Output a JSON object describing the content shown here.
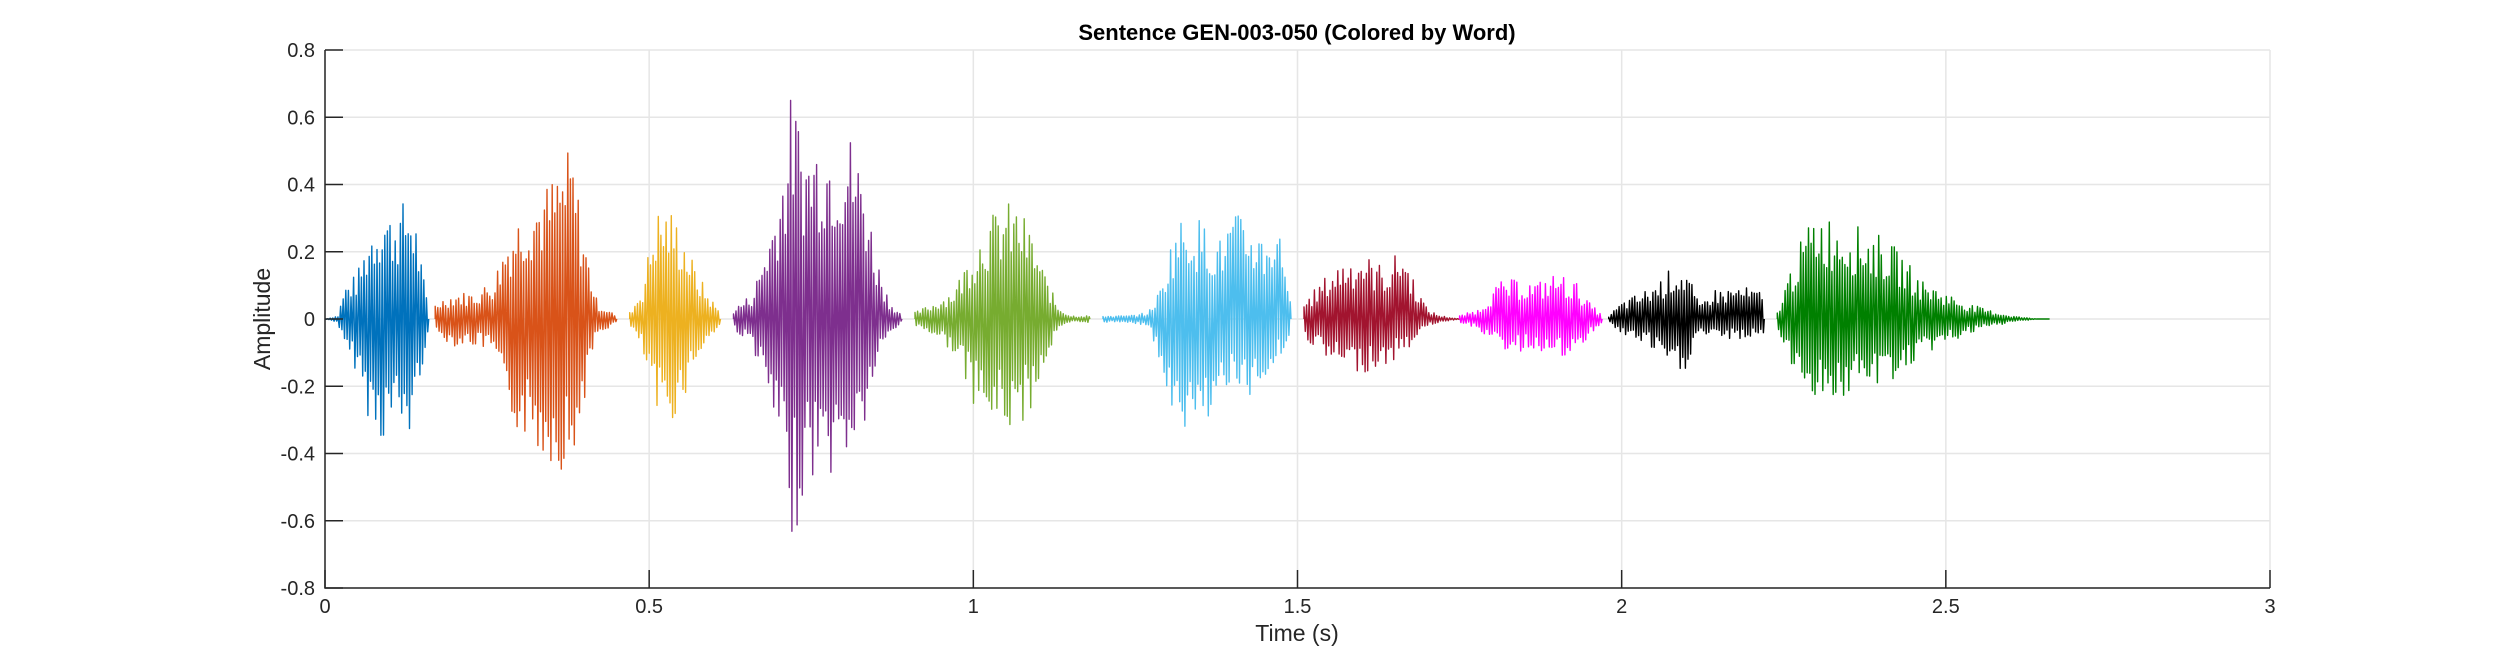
{
  "chart_data": {
    "type": "line",
    "title": "Sentence GEN-003-050 (Colored by Word)",
    "xlabel": "Time (s)",
    "ylabel": "Amplitude",
    "xlim": [
      0,
      3
    ],
    "ylim": [
      -0.8,
      0.8
    ],
    "xticks": [
      0,
      0.5,
      1,
      1.5,
      2,
      2.5,
      3
    ],
    "xtick_labels": [
      "0",
      "0.5",
      "1",
      "1.5",
      "2",
      "2.5",
      "3"
    ],
    "yticks": [
      -0.8,
      -0.6,
      -0.4,
      -0.2,
      0,
      0.2,
      0.4,
      0.6,
      0.8
    ],
    "ytick_labels": [
      "-0.8",
      "-0.6",
      "-0.4",
      "-0.2",
      "0",
      "0.2",
      "0.4",
      "0.6",
      "0.8"
    ],
    "grid": true,
    "legend": false,
    "series": [
      {
        "color": "#0072bd",
        "x": [
          0.0,
          0.02,
          0.03,
          0.05,
          0.07,
          0.09,
          0.1,
          0.12,
          0.13,
          0.14,
          0.15,
          0.16
        ],
        "max": [
          0.0,
          0.01,
          0.1,
          0.14,
          0.28,
          0.36,
          0.32,
          0.35,
          0.37,
          0.3,
          0.15,
          0.03
        ],
        "min": [
          0.0,
          -0.01,
          -0.1,
          -0.16,
          -0.32,
          -0.37,
          -0.32,
          -0.35,
          -0.36,
          -0.28,
          -0.14,
          -0.03
        ]
      },
      {
        "color": "#d95319",
        "x": [
          0.17,
          0.2,
          0.23,
          0.26,
          0.28,
          0.31,
          0.34,
          0.36,
          0.38,
          0.4,
          0.42,
          0.45
        ],
        "max": [
          0.05,
          0.08,
          0.08,
          0.12,
          0.25,
          0.36,
          0.4,
          0.45,
          0.52,
          0.25,
          0.05,
          0.01
        ],
        "min": [
          -0.05,
          -0.08,
          -0.08,
          -0.1,
          -0.3,
          -0.36,
          -0.42,
          -0.44,
          -0.48,
          -0.24,
          -0.05,
          -0.01
        ]
      },
      {
        "color": "#edb120",
        "x": [
          0.47,
          0.49,
          0.51,
          0.53,
          0.55,
          0.57,
          0.59,
          0.61
        ],
        "max": [
          0.02,
          0.1,
          0.33,
          0.34,
          0.28,
          0.16,
          0.08,
          0.02
        ],
        "min": [
          -0.02,
          -0.1,
          -0.3,
          -0.32,
          -0.26,
          -0.14,
          -0.07,
          -0.02
        ]
      },
      {
        "color": "#7e2f8e",
        "x": [
          0.63,
          0.66,
          0.69,
          0.71,
          0.72,
          0.74,
          0.76,
          0.79,
          0.81,
          0.83,
          0.85,
          0.87,
          0.89
        ],
        "max": [
          0.03,
          0.08,
          0.3,
          0.5,
          0.7,
          0.52,
          0.56,
          0.55,
          0.56,
          0.45,
          0.2,
          0.06,
          0.01
        ],
        "min": [
          -0.03,
          -0.08,
          -0.3,
          -0.5,
          -0.68,
          -0.52,
          -0.45,
          -0.48,
          -0.4,
          -0.35,
          -0.15,
          -0.05,
          -0.01
        ]
      },
      {
        "color": "#77ac30",
        "x": [
          0.91,
          0.94,
          0.97,
          1.0,
          1.02,
          1.05,
          1.07,
          1.09,
          1.11,
          1.13,
          1.15,
          1.18
        ],
        "max": [
          0.02,
          0.05,
          0.09,
          0.22,
          0.3,
          0.35,
          0.34,
          0.26,
          0.14,
          0.04,
          0.01,
          0.01
        ],
        "min": [
          -0.02,
          -0.05,
          -0.1,
          -0.25,
          -0.32,
          -0.33,
          -0.34,
          -0.26,
          -0.14,
          -0.04,
          -0.01,
          -0.01
        ]
      },
      {
        "color": "#4dbeee",
        "x": [
          1.2,
          1.24,
          1.27,
          1.29,
          1.31,
          1.33,
          1.35,
          1.38,
          1.4,
          1.42,
          1.45,
          1.47,
          1.49
        ],
        "max": [
          0.01,
          0.01,
          0.02,
          0.1,
          0.28,
          0.32,
          0.3,
          0.24,
          0.32,
          0.3,
          0.25,
          0.3,
          0.08
        ],
        "min": [
          -0.01,
          -0.01,
          -0.02,
          -0.15,
          -0.35,
          -0.37,
          -0.33,
          -0.24,
          -0.2,
          -0.26,
          -0.18,
          -0.12,
          -0.06
        ]
      },
      {
        "color": "#a2142f",
        "x": [
          1.51,
          1.54,
          1.57,
          1.6,
          1.62,
          1.64,
          1.66,
          1.68,
          1.7,
          1.72,
          1.75
        ],
        "max": [
          0.05,
          0.12,
          0.18,
          0.2,
          0.17,
          0.16,
          0.22,
          0.12,
          0.03,
          0.01,
          0.0
        ],
        "min": [
          -0.05,
          -0.12,
          -0.15,
          -0.16,
          -0.15,
          -0.14,
          -0.11,
          -0.07,
          -0.02,
          -0.01,
          0.0
        ]
      },
      {
        "color": "#ff00ff",
        "x": [
          1.75,
          1.78,
          1.81,
          1.84,
          1.87,
          1.9,
          1.93,
          1.95,
          1.97
        ],
        "max": [
          0.01,
          0.03,
          0.11,
          0.12,
          0.11,
          0.14,
          0.11,
          0.05,
          0.01
        ],
        "min": [
          -0.01,
          -0.03,
          -0.09,
          -0.1,
          -0.09,
          -0.12,
          -0.12,
          -0.05,
          -0.01
        ]
      },
      {
        "color": "#000000",
        "x": [
          1.98,
          2.0,
          2.02,
          2.04,
          2.06,
          2.08,
          2.1,
          2.12,
          2.14,
          2.16,
          2.18,
          2.2,
          2.22
        ],
        "max": [
          0.01,
          0.05,
          0.07,
          0.09,
          0.12,
          0.16,
          0.15,
          0.04,
          0.09,
          0.09,
          0.1,
          0.09,
          0.08
        ],
        "min": [
          -0.01,
          -0.05,
          -0.06,
          -0.08,
          -0.12,
          -0.17,
          -0.15,
          -0.04,
          -0.06,
          -0.06,
          -0.06,
          -0.06,
          -0.05
        ]
      },
      {
        "color": "#008000",
        "x": [
          2.24,
          2.26,
          2.28,
          2.3,
          2.33,
          2.36,
          2.4,
          2.43,
          2.46,
          2.49,
          2.53,
          2.56,
          2.6,
          2.64,
          2.66
        ],
        "max": [
          0.02,
          0.15,
          0.25,
          0.33,
          0.3,
          0.28,
          0.25,
          0.2,
          0.12,
          0.09,
          0.05,
          0.03,
          0.01,
          0.0,
          0.0
        ],
        "min": [
          -0.02,
          -0.15,
          -0.2,
          -0.23,
          -0.25,
          -0.22,
          -0.2,
          -0.17,
          -0.12,
          -0.08,
          -0.05,
          -0.03,
          -0.01,
          0.0,
          0.0
        ]
      }
    ]
  }
}
